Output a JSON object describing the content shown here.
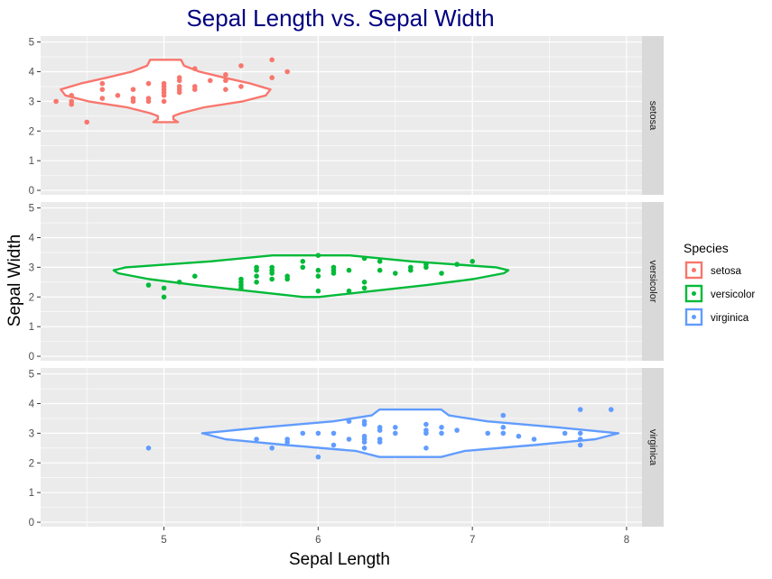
{
  "chart_data": {
    "type": "scatter",
    "title": "Sepal Length vs. Sepal Width",
    "xlabel": "Sepal Length",
    "ylabel": "Sepal Width",
    "xlim": [
      4.2,
      8.1
    ],
    "ylim": [
      -0.15,
      5.2
    ],
    "x_ticks": [
      5,
      6,
      7,
      8
    ],
    "y_ticks": [
      0,
      1,
      2,
      3,
      4,
      5
    ],
    "grid": true,
    "facets": [
      "setosa",
      "versicolor",
      "virginica"
    ],
    "legend": {
      "title": "Species",
      "position": "right"
    },
    "colors": {
      "title": "#000080",
      "panel_bg": "#ebebeb",
      "grid": "#ffffff",
      "strip_bg": "#d9d9d9"
    },
    "series": [
      {
        "name": "setosa",
        "color": "#F8766D",
        "points": [
          [
            4.3,
            3.0
          ],
          [
            4.4,
            2.9
          ],
          [
            4.4,
            3.0
          ],
          [
            4.4,
            3.2
          ],
          [
            4.5,
            2.3
          ],
          [
            4.6,
            3.1
          ],
          [
            4.6,
            3.4
          ],
          [
            4.6,
            3.6
          ],
          [
            4.7,
            3.2
          ],
          [
            4.8,
            3.0
          ],
          [
            4.8,
            3.1
          ],
          [
            4.8,
            3.4
          ],
          [
            4.9,
            3.0
          ],
          [
            4.9,
            3.1
          ],
          [
            4.9,
            3.6
          ],
          [
            5.0,
            3.0
          ],
          [
            5.0,
            3.2
          ],
          [
            5.0,
            3.3
          ],
          [
            5.0,
            3.4
          ],
          [
            5.0,
            3.5
          ],
          [
            5.0,
            3.6
          ],
          [
            5.1,
            3.3
          ],
          [
            5.1,
            3.4
          ],
          [
            5.1,
            3.5
          ],
          [
            5.1,
            3.7
          ],
          [
            5.1,
            3.8
          ],
          [
            5.2,
            3.4
          ],
          [
            5.2,
            3.5
          ],
          [
            5.2,
            4.1
          ],
          [
            5.3,
            3.7
          ],
          [
            5.4,
            3.4
          ],
          [
            5.4,
            3.7
          ],
          [
            5.4,
            3.9
          ],
          [
            5.5,
            3.5
          ],
          [
            5.5,
            4.2
          ],
          [
            5.7,
            3.8
          ],
          [
            5.7,
            4.4
          ],
          [
            5.8,
            4.0
          ]
        ],
        "violin": {
          "y": [
            2.3,
            2.4,
            2.5,
            2.6,
            2.8,
            3.0,
            3.2,
            3.4,
            3.6,
            3.8,
            4.0,
            4.2,
            4.4
          ],
          "halfwidth": [
            0.08,
            0.05,
            0.05,
            0.1,
            0.25,
            0.5,
            0.65,
            0.68,
            0.55,
            0.38,
            0.22,
            0.12,
            0.1
          ]
        }
      },
      {
        "name": "versicolor",
        "color": "#00BA38",
        "points": [
          [
            4.9,
            2.4
          ],
          [
            5.0,
            2.0
          ],
          [
            5.0,
            2.3
          ],
          [
            5.1,
            2.5
          ],
          [
            5.2,
            2.7
          ],
          [
            5.5,
            2.3
          ],
          [
            5.5,
            2.4
          ],
          [
            5.5,
            2.5
          ],
          [
            5.5,
            2.6
          ],
          [
            5.6,
            2.5
          ],
          [
            5.6,
            2.7
          ],
          [
            5.6,
            2.9
          ],
          [
            5.6,
            3.0
          ],
          [
            5.7,
            2.6
          ],
          [
            5.7,
            2.8
          ],
          [
            5.7,
            2.9
          ],
          [
            5.7,
            3.0
          ],
          [
            5.8,
            2.6
          ],
          [
            5.8,
            2.7
          ],
          [
            5.9,
            3.0
          ],
          [
            5.9,
            3.2
          ],
          [
            6.0,
            2.2
          ],
          [
            6.0,
            2.7
          ],
          [
            6.0,
            2.9
          ],
          [
            6.0,
            3.4
          ],
          [
            6.1,
            2.8
          ],
          [
            6.1,
            2.9
          ],
          [
            6.1,
            3.0
          ],
          [
            6.2,
            2.2
          ],
          [
            6.2,
            2.9
          ],
          [
            6.3,
            2.3
          ],
          [
            6.3,
            2.5
          ],
          [
            6.3,
            3.3
          ],
          [
            6.4,
            2.9
          ],
          [
            6.4,
            3.2
          ],
          [
            6.5,
            2.8
          ],
          [
            6.6,
            2.9
          ],
          [
            6.6,
            3.0
          ],
          [
            6.7,
            3.0
          ],
          [
            6.7,
            3.1
          ],
          [
            6.8,
            2.8
          ],
          [
            6.9,
            3.1
          ],
          [
            7.0,
            3.2
          ]
        ],
        "violin": {
          "y": [
            2.0,
            2.2,
            2.4,
            2.6,
            2.8,
            2.9,
            3.0,
            3.2,
            3.4
          ],
          "halfwidth": [
            0.05,
            0.4,
            0.75,
            1.05,
            1.25,
            1.28,
            1.2,
            0.65,
            0.25
          ]
        }
      },
      {
        "name": "virginica",
        "color": "#619CFF",
        "points": [
          [
            4.9,
            2.5
          ],
          [
            5.6,
            2.8
          ],
          [
            5.7,
            2.5
          ],
          [
            5.8,
            2.7
          ],
          [
            5.8,
            2.8
          ],
          [
            5.9,
            3.0
          ],
          [
            6.0,
            2.2
          ],
          [
            6.0,
            3.0
          ],
          [
            6.1,
            2.6
          ],
          [
            6.1,
            3.0
          ],
          [
            6.2,
            2.8
          ],
          [
            6.2,
            3.4
          ],
          [
            6.3,
            2.5
          ],
          [
            6.3,
            2.7
          ],
          [
            6.3,
            2.8
          ],
          [
            6.3,
            2.9
          ],
          [
            6.3,
            3.3
          ],
          [
            6.3,
            3.4
          ],
          [
            6.4,
            2.7
          ],
          [
            6.4,
            2.8
          ],
          [
            6.4,
            3.1
          ],
          [
            6.4,
            3.2
          ],
          [
            6.5,
            3.0
          ],
          [
            6.5,
            3.2
          ],
          [
            6.7,
            2.5
          ],
          [
            6.7,
            3.0
          ],
          [
            6.7,
            3.1
          ],
          [
            6.7,
            3.3
          ],
          [
            6.8,
            3.0
          ],
          [
            6.8,
            3.2
          ],
          [
            6.9,
            3.1
          ],
          [
            7.1,
            3.0
          ],
          [
            7.2,
            3.0
          ],
          [
            7.2,
            3.2
          ],
          [
            7.2,
            3.6
          ],
          [
            7.3,
            2.9
          ],
          [
            7.4,
            2.8
          ],
          [
            7.6,
            3.0
          ],
          [
            7.7,
            2.6
          ],
          [
            7.7,
            2.8
          ],
          [
            7.7,
            3.0
          ],
          [
            7.7,
            3.8
          ],
          [
            7.9,
            3.8
          ]
        ],
        "violin": {
          "y": [
            2.2,
            2.4,
            2.6,
            2.8,
            3.0,
            3.2,
            3.4,
            3.6,
            3.8
          ],
          "halfwidth": [
            0.2,
            0.35,
            0.8,
            1.2,
            1.35,
            0.95,
            0.5,
            0.25,
            0.2
          ]
        }
      }
    ]
  }
}
